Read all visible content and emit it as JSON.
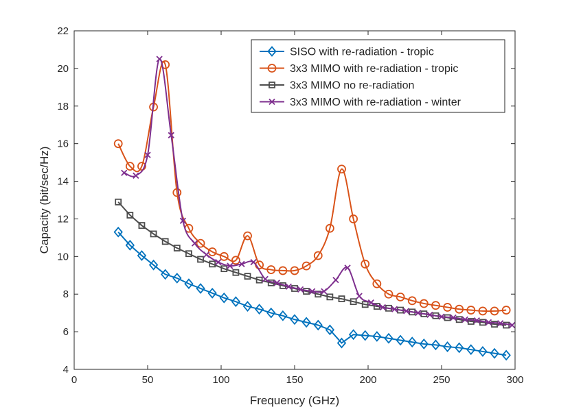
{
  "chart_data": {
    "type": "line",
    "title": "",
    "xlabel": "Frequency (GHz)",
    "ylabel": "Capacity (bit/sec/Hz)",
    "xlim": [
      0,
      300
    ],
    "ylim": [
      4,
      22
    ],
    "xticks": [
      0,
      50,
      100,
      150,
      200,
      250,
      300
    ],
    "yticks": [
      4,
      6,
      8,
      10,
      12,
      14,
      16,
      18,
      20,
      22
    ],
    "grid": false,
    "legend_position": "top-right",
    "series": [
      {
        "name": "SISO with re-radiation - tropic",
        "color": "#0072BD",
        "marker": "diamond",
        "x": [
          30,
          38,
          46,
          54,
          62,
          70,
          78,
          86,
          94,
          102,
          110,
          118,
          126,
          134,
          142,
          150,
          158,
          166,
          174,
          182,
          190,
          198,
          206,
          214,
          222,
          230,
          238,
          246,
          254,
          262,
          270,
          278,
          286,
          294
        ],
        "y": [
          11.3,
          10.6,
          10.05,
          9.55,
          9.05,
          8.85,
          8.55,
          8.3,
          8.05,
          7.8,
          7.6,
          7.35,
          7.2,
          7.0,
          6.85,
          6.65,
          6.5,
          6.35,
          6.1,
          5.4,
          5.85,
          5.8,
          5.75,
          5.65,
          5.55,
          5.45,
          5.35,
          5.3,
          5.2,
          5.15,
          5.05,
          4.95,
          4.85,
          4.75
        ]
      },
      {
        "name": "3x3 MIMO with re-radiation - tropic",
        "color": "#D95319",
        "marker": "circle",
        "x": [
          30,
          38,
          46,
          54,
          62,
          70,
          78,
          86,
          94,
          102,
          110,
          118,
          126,
          134,
          142,
          150,
          158,
          166,
          174,
          182,
          190,
          198,
          206,
          214,
          222,
          230,
          238,
          246,
          254,
          262,
          270,
          278,
          286,
          294
        ],
        "y": [
          16.0,
          14.8,
          14.8,
          17.95,
          20.2,
          13.4,
          11.5,
          10.7,
          10.25,
          10.0,
          9.8,
          11.1,
          9.55,
          9.3,
          9.25,
          9.25,
          9.5,
          10.05,
          11.5,
          14.65,
          12.0,
          9.6,
          8.55,
          8.0,
          7.85,
          7.65,
          7.5,
          7.4,
          7.3,
          7.2,
          7.15,
          7.1,
          7.1,
          7.15
        ]
      },
      {
        "name": "3x3 MIMO no re-radiation",
        "color": "#4D4D4D",
        "marker": "square",
        "x": [
          30,
          38,
          46,
          54,
          62,
          70,
          78,
          86,
          94,
          102,
          110,
          118,
          126,
          134,
          142,
          150,
          158,
          166,
          174,
          182,
          190,
          198,
          206,
          214,
          222,
          230,
          238,
          246,
          254,
          262,
          270,
          278,
          286,
          294
        ],
        "y": [
          12.9,
          12.2,
          11.65,
          11.2,
          10.8,
          10.45,
          10.15,
          9.85,
          9.6,
          9.35,
          9.15,
          8.95,
          8.75,
          8.6,
          8.45,
          8.3,
          8.15,
          8.0,
          7.85,
          7.75,
          7.6,
          7.45,
          7.35,
          7.25,
          7.15,
          7.05,
          6.95,
          6.85,
          6.75,
          6.65,
          6.55,
          6.5,
          6.4,
          6.35
        ]
      },
      {
        "name": "3x3 MIMO with re-radiation - winter",
        "color": "#7E2F8E",
        "marker": "x",
        "x": [
          34,
          42,
          50,
          58,
          66,
          74,
          82,
          90,
          98,
          106,
          114,
          122,
          130,
          138,
          146,
          154,
          162,
          170,
          178,
          186,
          194,
          202,
          210,
          218,
          226,
          234,
          242,
          250,
          258,
          266,
          274,
          282,
          290,
          298
        ],
        "y": [
          14.45,
          14.3,
          15.4,
          20.5,
          16.45,
          11.9,
          10.7,
          10.1,
          9.7,
          9.5,
          9.6,
          9.7,
          8.8,
          8.6,
          8.4,
          8.25,
          8.15,
          8.15,
          8.75,
          9.4,
          7.9,
          7.55,
          7.3,
          7.2,
          7.1,
          7.0,
          6.9,
          6.8,
          6.75,
          6.65,
          6.6,
          6.5,
          6.45,
          6.35
        ]
      }
    ]
  }
}
